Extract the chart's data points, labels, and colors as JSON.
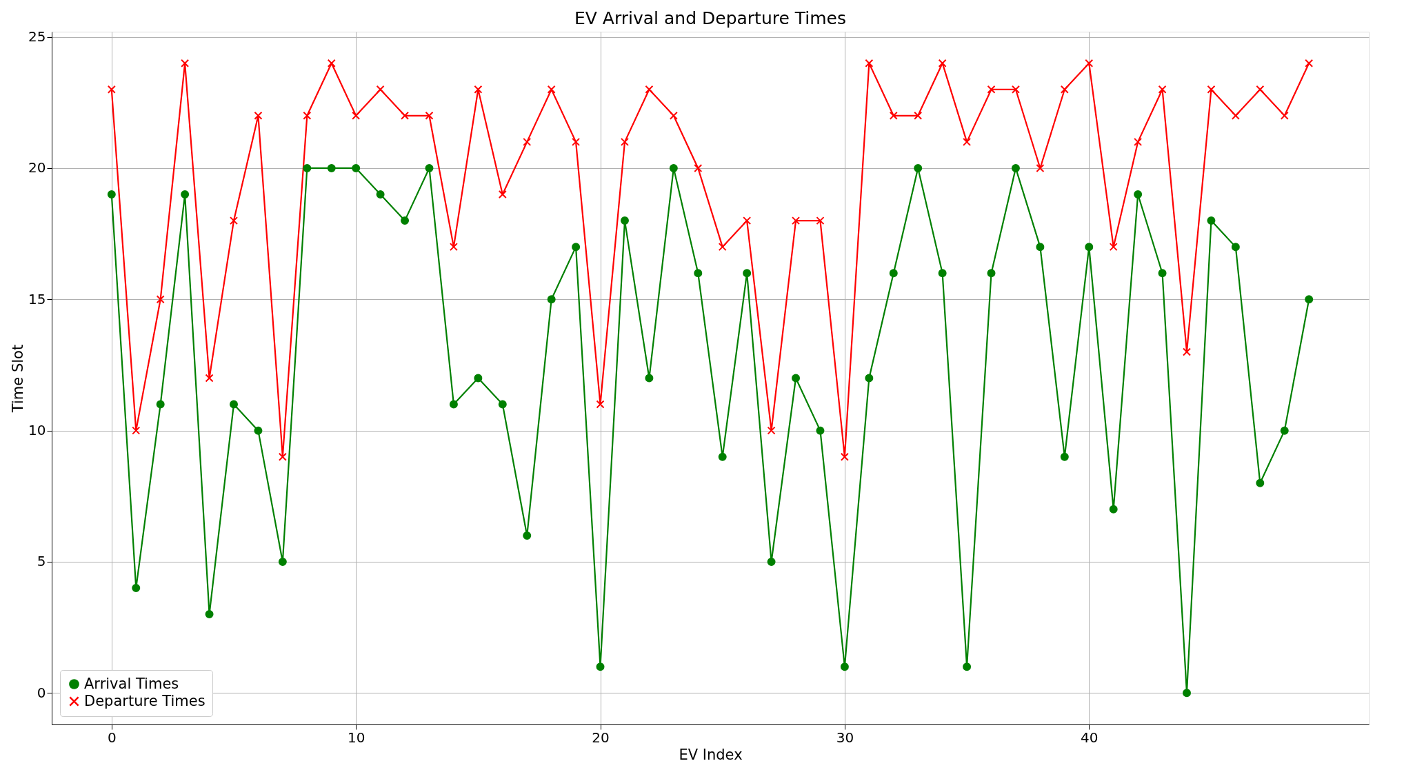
{
  "chart_data": {
    "type": "line",
    "title": "EV Arrival and Departure Times",
    "xlabel": "EV Index",
    "ylabel": "Time Slot",
    "x": [
      0,
      1,
      2,
      3,
      4,
      5,
      6,
      7,
      8,
      9,
      10,
      11,
      12,
      13,
      14,
      15,
      16,
      17,
      18,
      19,
      20,
      21,
      22,
      23,
      24,
      25,
      26,
      27,
      28,
      29,
      30,
      31,
      32,
      33,
      34,
      35,
      36,
      37,
      38,
      39,
      40,
      41,
      42,
      43,
      44,
      45,
      46,
      47,
      48,
      49
    ],
    "series": [
      {
        "name": "Arrival Times",
        "color": "#008000",
        "marker": "circle",
        "values": [
          19,
          4,
          11,
          19,
          3,
          11,
          10,
          5,
          20,
          20,
          20,
          19,
          18,
          20,
          11,
          12,
          11,
          6,
          15,
          17,
          1,
          18,
          12,
          20,
          16,
          9,
          16,
          5,
          12,
          10,
          1,
          12,
          16,
          20,
          16,
          1,
          16,
          20,
          17,
          9,
          17,
          7,
          19,
          16,
          0,
          18,
          17,
          8,
          10,
          15
        ]
      },
      {
        "name": "Departure Times",
        "color": "#ff0000",
        "marker": "cross",
        "values": [
          23,
          10,
          15,
          24,
          12,
          18,
          22,
          9,
          22,
          24,
          22,
          23,
          22,
          22,
          17,
          23,
          19,
          21,
          23,
          21,
          11,
          21,
          23,
          22,
          20,
          17,
          18,
          10,
          18,
          18,
          9,
          24,
          22,
          22,
          24,
          21,
          23,
          23,
          20,
          23,
          24,
          17,
          21,
          23,
          13,
          23,
          22,
          23,
          22,
          24
        ]
      }
    ],
    "xlim": [
      -2.45,
      51.45
    ],
    "ylim": [
      -1.2,
      25.2
    ],
    "xticks": [
      0,
      10,
      20,
      30,
      40
    ],
    "yticks": [
      0,
      5,
      10,
      15,
      20,
      25
    ],
    "grid": true,
    "legend": "bottom left",
    "line_style": "solid"
  }
}
